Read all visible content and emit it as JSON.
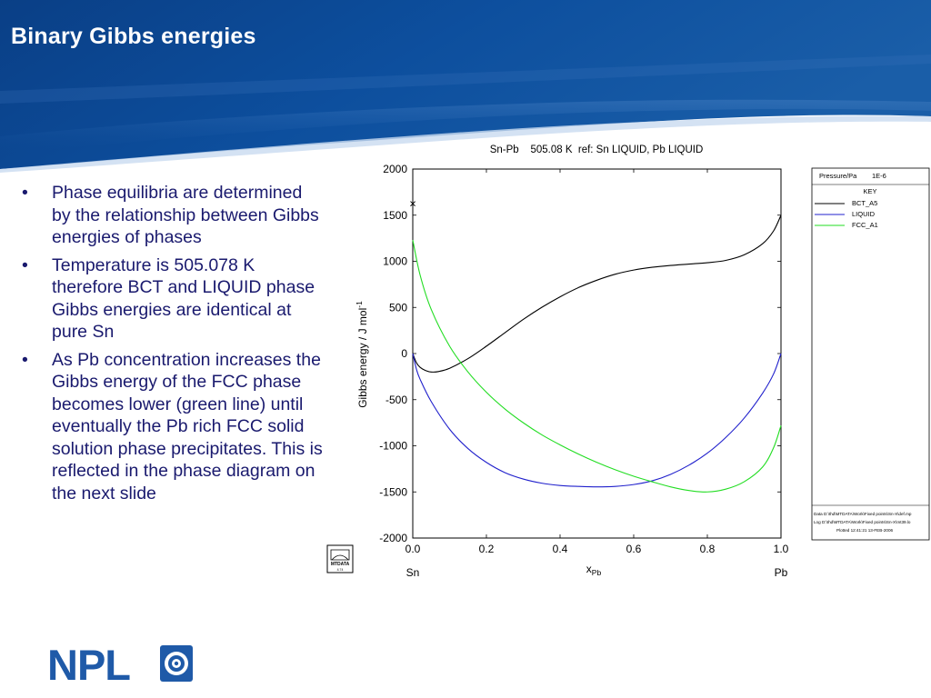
{
  "slide": {
    "title": "Binary Gibbs energies",
    "bullets": [
      "Phase equilibria are determined by the relationship between Gibbs energies of phases",
      "Temperature is 505.078 K therefore BCT and LIQUID phase Gibbs energies are identical at pure Sn",
      "As Pb concentration increases the Gibbs energy of the FCC phase becomes lower (green line) until eventually the Pb rich FCC solid solution phase precipitates. This is reflected in the phase diagram on the next slide"
    ],
    "logo_text": "NPL"
  },
  "chart_data": {
    "type": "line",
    "title": "Sn-Pb    505.08 K  ref: Sn LIQUID, Pb LIQUID",
    "xlabel_main": "x",
    "xlabel_sub": "Pb",
    "ylabel_main": "Gibbs energy / J mol",
    "ylabel_sup": "-1",
    "xlim": [
      0,
      1
    ],
    "ylim": [
      -2000,
      2000
    ],
    "x_ticks": [
      "0.0",
      "0.2",
      "0.4",
      "0.6",
      "0.8",
      "1.0"
    ],
    "y_ticks": [
      "2000",
      "1500",
      "1000",
      "500",
      "0",
      "-500",
      "-1000",
      "-1500",
      "-2000"
    ],
    "x_end_labels": {
      "left": "Sn",
      "right": "Pb"
    },
    "series": [
      {
        "name": "BCT_A5",
        "color": "#000000",
        "points": [
          [
            0,
            0
          ],
          [
            0.01,
            -100
          ],
          [
            0.02,
            -150
          ],
          [
            0.035,
            -185
          ],
          [
            0.05,
            -200
          ],
          [
            0.07,
            -195
          ],
          [
            0.1,
            -160
          ],
          [
            0.15,
            -55
          ],
          [
            0.2,
            80
          ],
          [
            0.25,
            225
          ],
          [
            0.3,
            370
          ],
          [
            0.35,
            500
          ],
          [
            0.4,
            615
          ],
          [
            0.45,
            715
          ],
          [
            0.5,
            795
          ],
          [
            0.55,
            860
          ],
          [
            0.6,
            905
          ],
          [
            0.65,
            935
          ],
          [
            0.7,
            955
          ],
          [
            0.75,
            970
          ],
          [
            0.8,
            985
          ],
          [
            0.85,
            1010
          ],
          [
            0.9,
            1070
          ],
          [
            0.95,
            1190
          ],
          [
            0.98,
            1330
          ],
          [
            1.0,
            1500
          ]
        ]
      },
      {
        "name": "LIQUID",
        "color": "#2020cc",
        "points": [
          [
            0,
            0
          ],
          [
            0.01,
            -170
          ],
          [
            0.02,
            -280
          ],
          [
            0.05,
            -520
          ],
          [
            0.1,
            -820
          ],
          [
            0.15,
            -1030
          ],
          [
            0.2,
            -1180
          ],
          [
            0.25,
            -1290
          ],
          [
            0.3,
            -1360
          ],
          [
            0.35,
            -1405
          ],
          [
            0.4,
            -1430
          ],
          [
            0.45,
            -1440
          ],
          [
            0.5,
            -1445
          ],
          [
            0.55,
            -1440
          ],
          [
            0.6,
            -1420
          ],
          [
            0.65,
            -1380
          ],
          [
            0.7,
            -1310
          ],
          [
            0.75,
            -1210
          ],
          [
            0.8,
            -1080
          ],
          [
            0.85,
            -910
          ],
          [
            0.9,
            -700
          ],
          [
            0.95,
            -430
          ],
          [
            0.98,
            -220
          ],
          [
            1.0,
            0
          ]
        ]
      },
      {
        "name": "FCC_A1",
        "color": "#22dd22",
        "points": [
          [
            0,
            1230
          ],
          [
            0.02,
            850
          ],
          [
            0.05,
            480
          ],
          [
            0.1,
            80
          ],
          [
            0.15,
            -200
          ],
          [
            0.2,
            -420
          ],
          [
            0.25,
            -600
          ],
          [
            0.3,
            -750
          ],
          [
            0.35,
            -880
          ],
          [
            0.4,
            -990
          ],
          [
            0.45,
            -1090
          ],
          [
            0.5,
            -1180
          ],
          [
            0.55,
            -1260
          ],
          [
            0.6,
            -1330
          ],
          [
            0.65,
            -1390
          ],
          [
            0.7,
            -1445
          ],
          [
            0.75,
            -1485
          ],
          [
            0.8,
            -1500
          ],
          [
            0.85,
            -1470
          ],
          [
            0.9,
            -1390
          ],
          [
            0.95,
            -1230
          ],
          [
            0.98,
            -1020
          ],
          [
            1.0,
            -780
          ]
        ]
      }
    ],
    "marker": {
      "label": "×",
      "x": 0,
      "y": 1620
    },
    "key_panel": {
      "pressure_label": "Pressure/Pa",
      "pressure_value": "1E-6",
      "key_title": "KEY",
      "footer": [
        "Data D:\\thd\\MTDATA\\Work\\Fixed points\\Sn-X\\def.mp",
        "Log D:\\thd\\MTDATA\\Work\\Fixed points\\Sn-X\\mt39.lo",
        "Plotted  12:41:21 13-FEB-2006"
      ]
    },
    "badge": {
      "text": "MTDATA",
      "sub": "4.74"
    }
  }
}
